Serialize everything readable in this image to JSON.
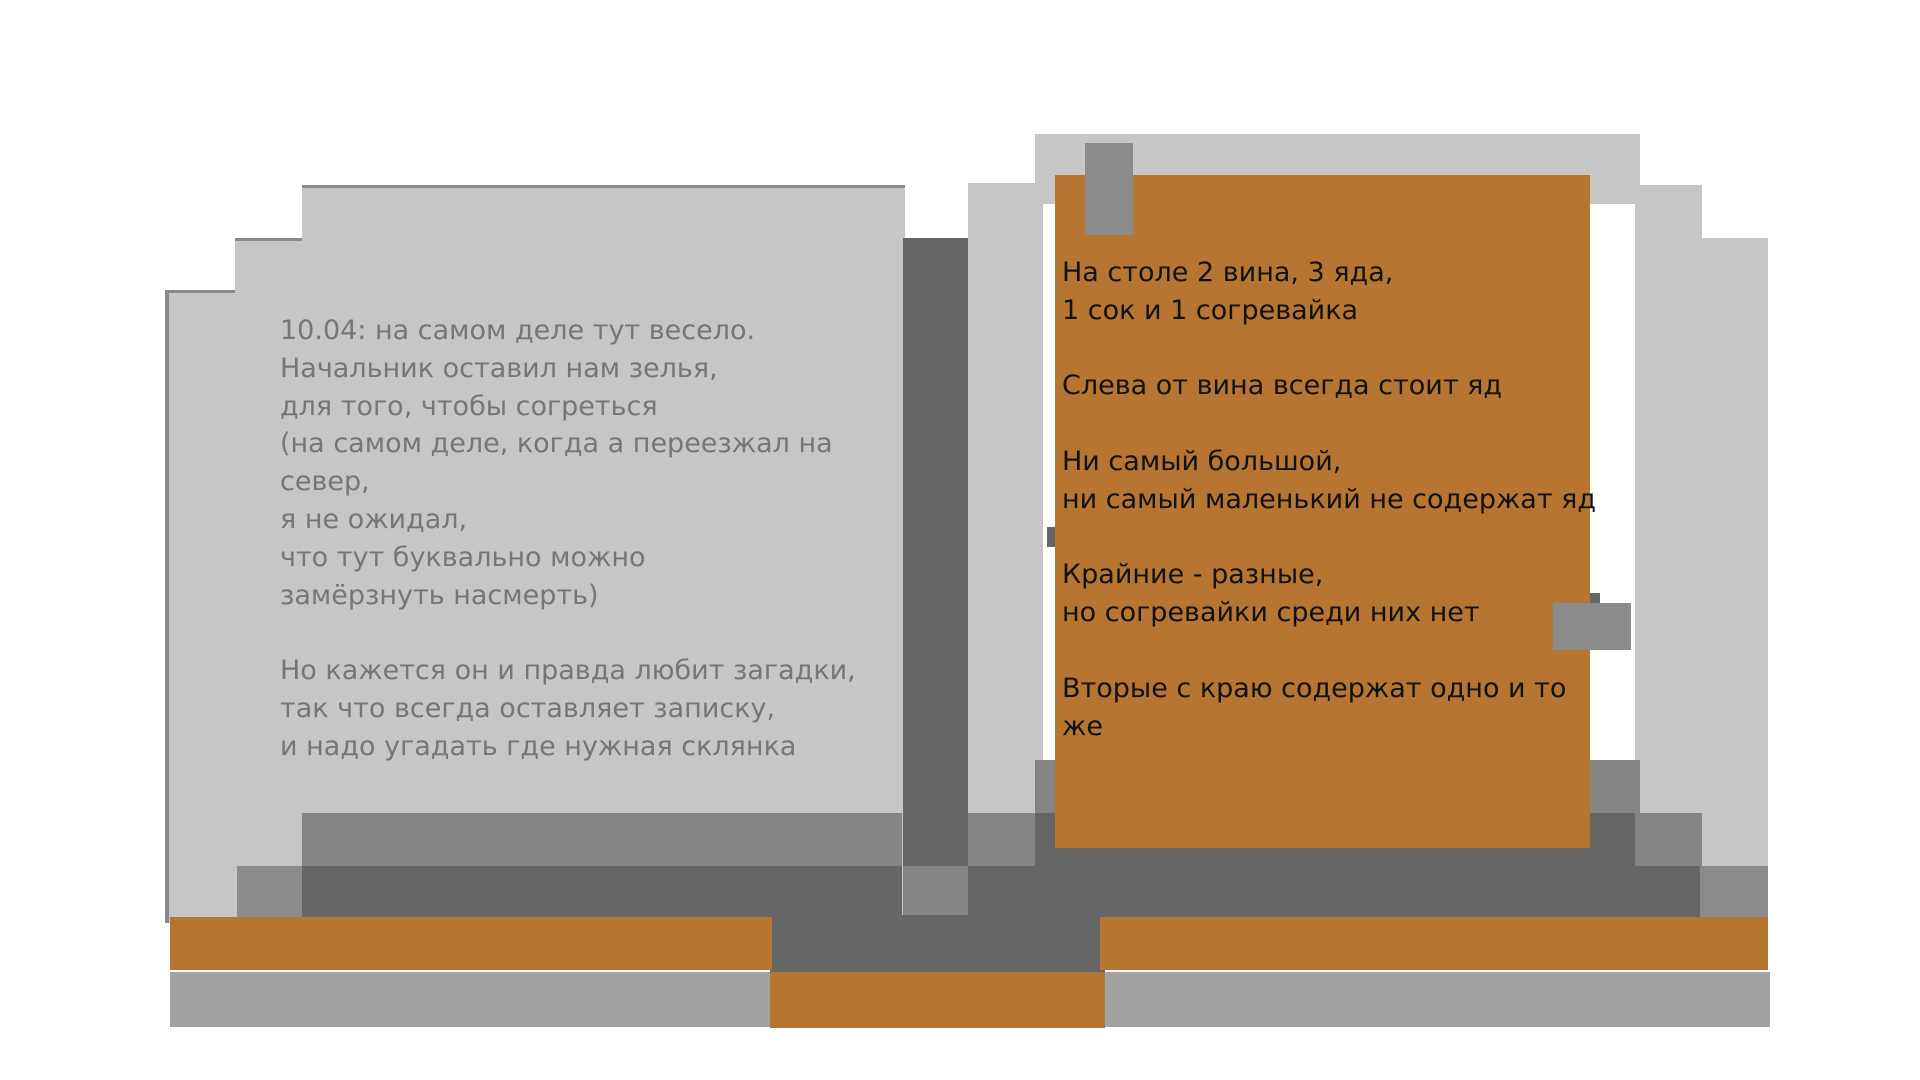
{
  "book": {
    "left_page_text": "10.04: на самом деле тут весело.\n Начальник оставил нам зелья,\n для того, чтобы согреться\n(на самом деле, когда а переезжал на север,\nя не ожидал,\nчто тут буквально можно\nзамёрзнуть насмерть)\n\nНо кажется он и правда любит загадки,\n так что всегда оставляет записку,\nи надо угадать где нужная склянка",
    "note_text": "На столе 2 вина, 3 яда,\n 1 сок и 1 согревайка\n\nСлева от вина всегда стоит яд\n\nНи самый большой,\n ни самый маленький не содержат яд\n\nКрайние - разные,\nно согревайки среди них нет\n\nВторые с краю содержат одно и то же"
  },
  "colors": {
    "page": "#c6c6c6",
    "spine": "#666666",
    "shade": "#858585",
    "cover_orange": "#b67632",
    "cover_gray": "#a2a2a2",
    "note": "#b67632",
    "left_text": "#767676",
    "note_text": "#111111"
  }
}
